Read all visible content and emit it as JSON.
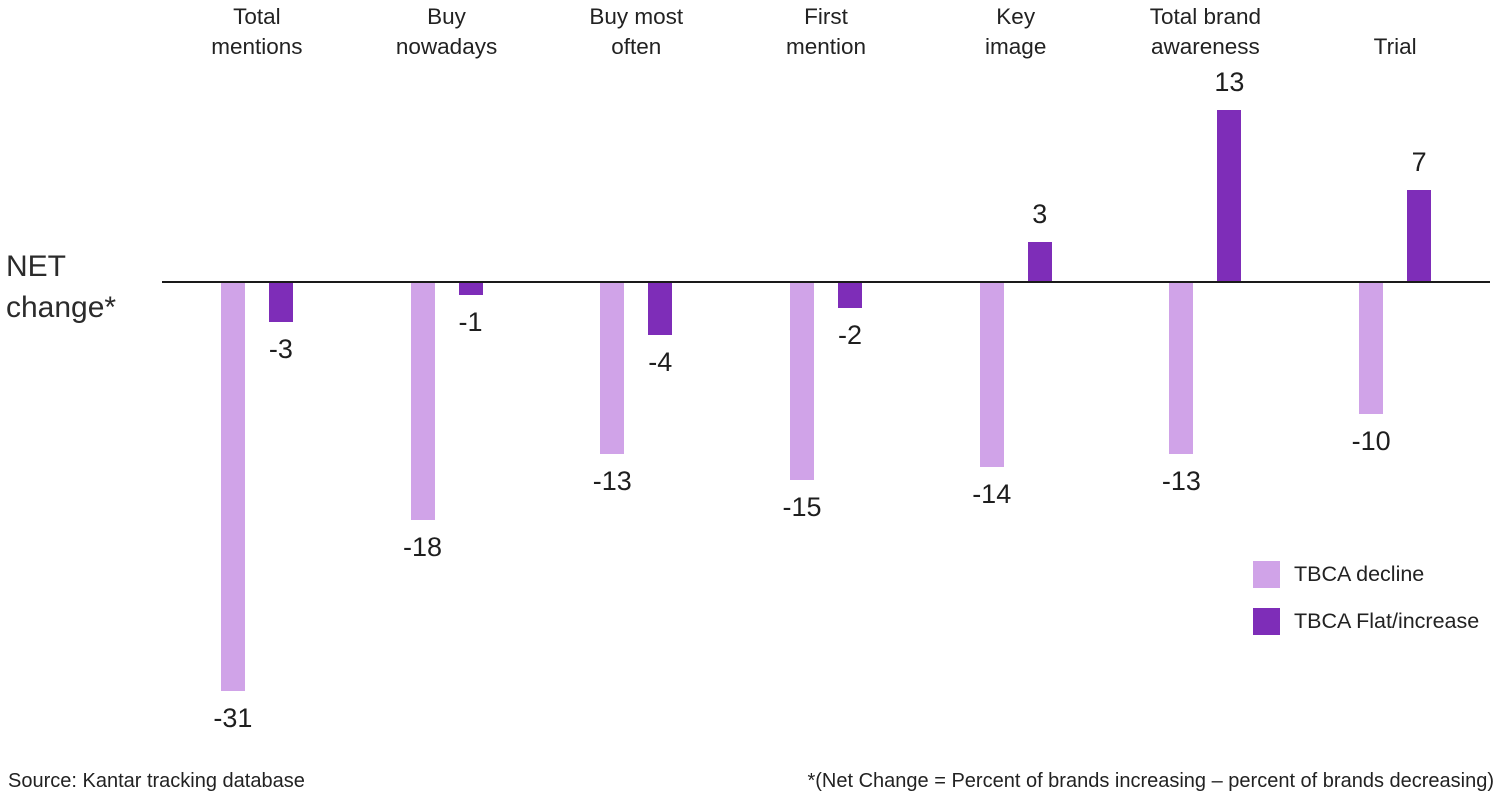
{
  "chart_data": {
    "type": "bar",
    "title": "",
    "xlabel": "",
    "ylabel": "NET change*",
    "grid": false,
    "baseline_value": 0,
    "ylim": [
      -31,
      13
    ],
    "legend_position": "right-middle",
    "categories": [
      "Total mentions",
      "Buy nowadays",
      "Buy most often",
      "First mention",
      "Key image",
      "Total brand awareness",
      "Trial"
    ],
    "category_label_lines": [
      "Total\nmentions",
      "Buy\nnowadays",
      "Buy most\noften",
      "First\nmention",
      "Key\nimage",
      "Total brand\nawareness",
      "Trial"
    ],
    "series": [
      {
        "name": "TBCA decline",
        "color": "#d0a3e8",
        "values": [
          -31,
          -18,
          -13,
          -15,
          -14,
          -13,
          -10
        ]
      },
      {
        "name": "TBCA Flat/increase",
        "color": "#7e2db8",
        "values": [
          -3,
          -1,
          -4,
          -2,
          3,
          13,
          7
        ]
      }
    ],
    "value_labels_shown": true
  },
  "axis": {
    "net_change_label": "NET\nchange*"
  },
  "legend": {
    "items": [
      {
        "label": "TBCA decline",
        "color": "#d0a3e8"
      },
      {
        "label": "TBCA Flat/increase",
        "color": "#7e2db8"
      }
    ]
  },
  "footer": {
    "source": "Source: Kantar tracking database",
    "footnote": "*(Net Change = Percent of brands increasing – percent of brands decreasing)"
  },
  "colors": {
    "decline_bar": "#d0a3e8",
    "increase_bar": "#7e2db8",
    "axis_line": "#1a1a1a",
    "text": "#222222"
  }
}
